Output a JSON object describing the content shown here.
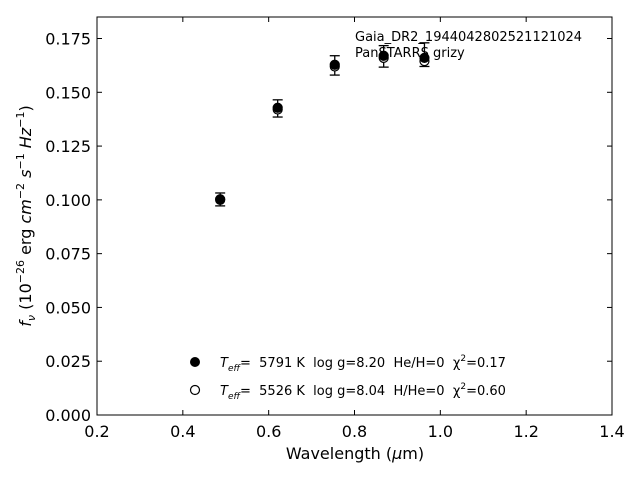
{
  "chart_data": {
    "type": "scatter",
    "title": "",
    "xlabel": "Wavelength (μm)",
    "ylabel": "f_ν (10^-26 erg cm^-2 s^-1 Hz^-1)",
    "xlim": [
      0.2,
      1.4
    ],
    "ylim": [
      0.0,
      0.185
    ],
    "xticks": [
      0.2,
      0.4,
      0.6,
      0.8,
      1.0,
      1.2,
      1.4
    ],
    "xtick_labels": [
      "0.2",
      "0.4",
      "0.6",
      "0.8",
      "1.0",
      "1.2",
      "1.4"
    ],
    "yticks": [
      0.0,
      0.025,
      0.05,
      0.075,
      0.1,
      0.125,
      0.15,
      0.175
    ],
    "ytick_labels": [
      "0.000",
      "0.025",
      "0.050",
      "0.075",
      "0.100",
      "0.125",
      "0.150",
      "0.175"
    ],
    "grid": false,
    "annotations": [
      "Gaia_DR2_1944042802521121024",
      "PanSTARRS grizy"
    ],
    "observed": {
      "x": [
        0.487,
        0.621,
        0.754,
        0.868,
        0.963
      ],
      "y": [
        0.1002,
        0.1425,
        0.1625,
        0.1667,
        0.1675
      ],
      "yerr": [
        0.003,
        0.004,
        0.0045,
        0.005,
        0.0055
      ]
    },
    "series": [
      {
        "name": "T_eff= 5791 K  log g=8.20  He/H=0  χ²=0.17",
        "marker": "filled",
        "x": [
          0.487,
          0.621,
          0.754,
          0.868,
          0.963
        ],
        "y": [
          0.1003,
          0.1428,
          0.1628,
          0.167,
          0.166
        ]
      },
      {
        "name": "T_eff= 5526 K  log g=8.04  H/He=0  χ²=0.60",
        "marker": "open",
        "x": [
          0.487,
          0.621,
          0.754,
          0.868,
          0.963
        ],
        "y": [
          0.1,
          0.142,
          0.162,
          0.166,
          0.1645
        ]
      }
    ],
    "legend_position": "bottom-center",
    "legend_entries": [
      {
        "teff_label": "T",
        "teff_sub": "eff",
        "text": "=  5791 K  log g=8.20  He/H=0  χ",
        "sup": "2",
        "tail": "=0.17"
      },
      {
        "teff_label": "T",
        "teff_sub": "eff",
        "text": "=  5526 K  log g=8.04  H/He=0  χ",
        "sup": "2",
        "tail": "=0.60"
      }
    ]
  }
}
